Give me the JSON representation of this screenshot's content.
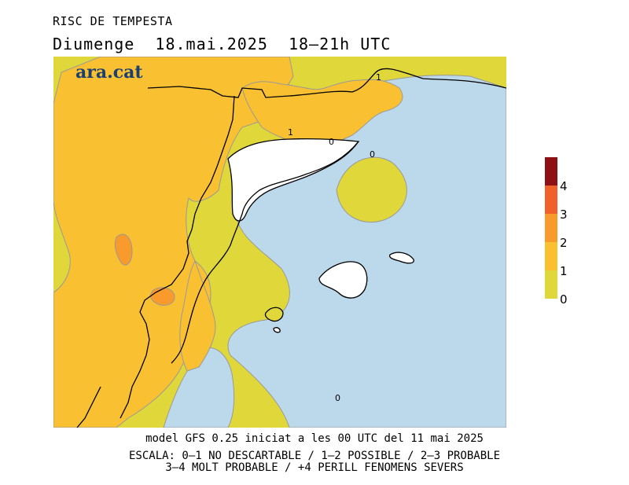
{
  "title": "RISC DE TEMPESTA",
  "subtitle": "Diumenge  18.mai.2025  18—21h UTC",
  "logo": "ara.cat",
  "legend": {
    "colors": [
      "#e0d83a",
      "#f9c131",
      "#f89a2c",
      "#f0622a",
      "#8e1014"
    ],
    "labels": [
      "0",
      "1",
      "2",
      "3",
      "4"
    ]
  },
  "contour_labels": [
    "1",
    "1",
    "0",
    "0",
    "0"
  ],
  "colors": {
    "sea": "#bcd9eb",
    "level0": "#e0d83a",
    "level1": "#f9c131",
    "level2": "#f89a2c",
    "level3": "#f0622a",
    "no_data": "#ffffff"
  },
  "footer": {
    "line1": "model GFS 0.25 iniciat a les 00 UTC del 11 mai 2025",
    "line2": "ESCALA: 0—1 NO DESCARTABLE / 1—2 POSSIBLE / 2—3 PROBABLE",
    "line3": "3—4 MOLT PROBABLE / +4 PERILL FENOMENS SEVERS"
  }
}
